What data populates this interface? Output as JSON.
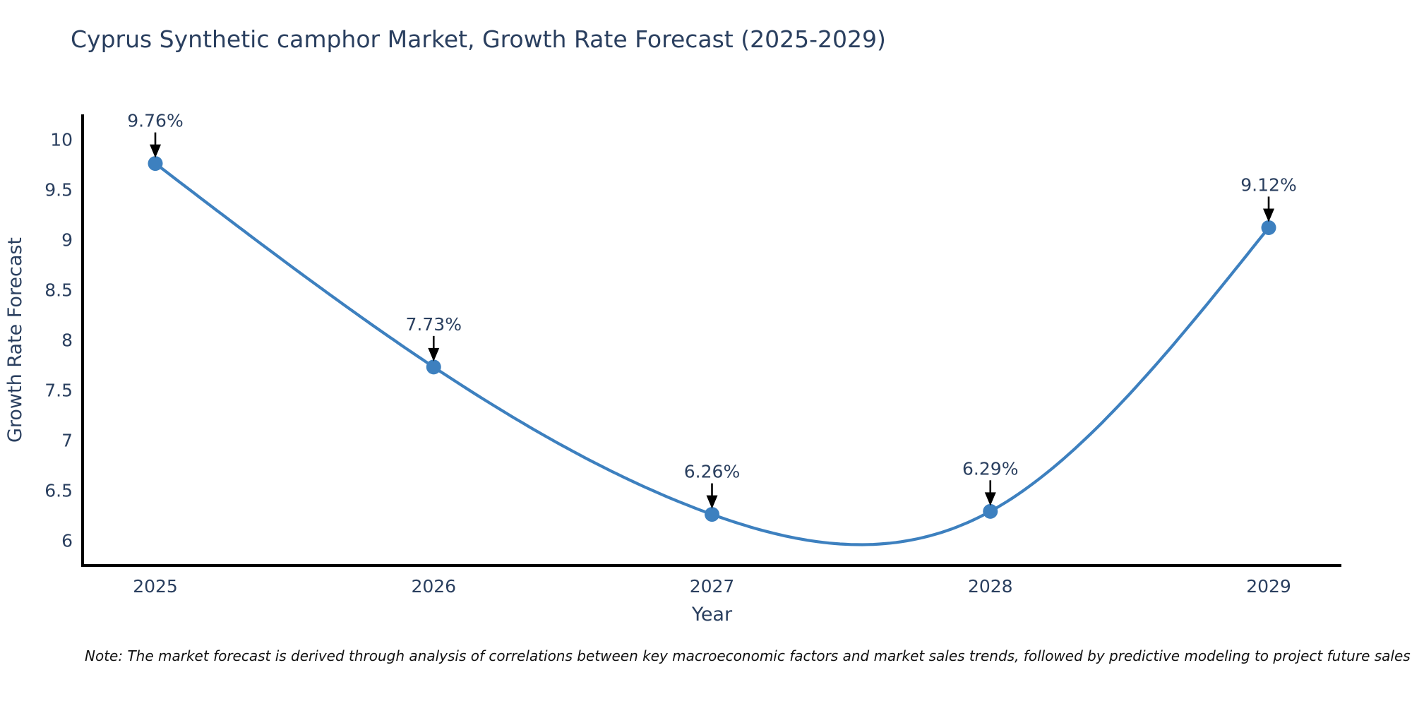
{
  "chart_data": {
    "type": "line",
    "title": "Cyprus Synthetic camphor Market, Growth Rate Forecast (2025-2029)",
    "categories": [
      "2025",
      "2026",
      "2027",
      "2028",
      "2029"
    ],
    "series": [
      {
        "name": "Growth Rate Forecast",
        "values": [
          9.76,
          7.73,
          6.26,
          6.29,
          9.12
        ]
      }
    ],
    "point_labels": [
      "9.76%",
      "7.73%",
      "6.26%",
      "6.29%",
      "9.12%"
    ],
    "xlabel": "Year",
    "ylabel": "Growth Rate Forecast",
    "ylim": [
      5.75,
      10.25
    ],
    "yticks": [
      6,
      6.5,
      7,
      7.5,
      8,
      8.5,
      9,
      9.5,
      10
    ],
    "grid": false,
    "legend": "none",
    "smoothing": "cubic-spline",
    "line_color": "#3d80bf",
    "marker_color": "#3d80bf",
    "annotation_arrow_color": "#000000",
    "axis_color": "#000000",
    "text_color": "#2a3f5f"
  },
  "note": "Note: The market forecast is derived through analysis of correlations between key macroeconomic factors and market sales trends, followed by predictive modeling to project future sales"
}
